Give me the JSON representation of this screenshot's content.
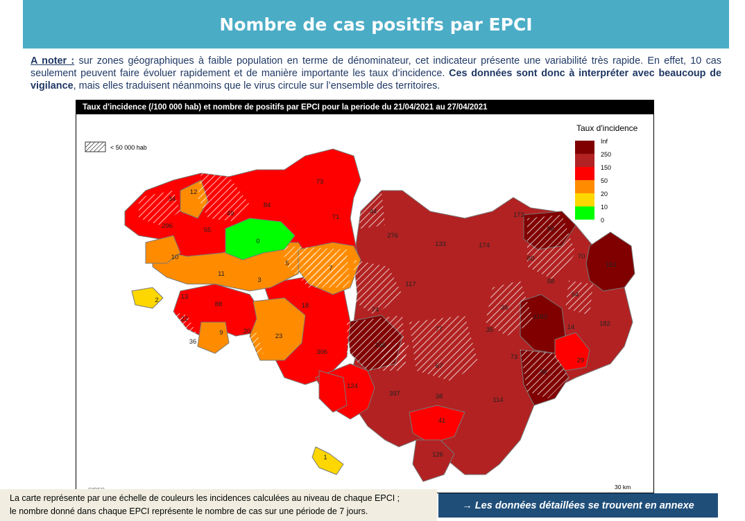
{
  "page": {
    "title": "Nombre de cas positifs par EPCI",
    "note_lead": "A noter :",
    "note_text_1": " sur zones géographiques à faible population en terme de dénominateur, cet indicateur présente une variabilité très rapide. En effet, 10 cas seulement peuvent faire évoluer rapidement et de manière importante les taux d’incidence. ",
    "note_bold": "Ces données sont donc à interpréter avec beaucoup de vigilance",
    "note_text_2": ", mais elles traduisent néanmoins que le virus circule sur l’ensemble des territoires."
  },
  "map": {
    "header": "Taux d'incidence (/100 000 hab) et nombre de positifs par EPCI pour la periode du 21/04/2021 au 27/04/2021",
    "hatch_legend": "< 50 000 hab",
    "legend_title": "Taux d'incidence",
    "legend": [
      {
        "label": "Inf",
        "color": "#800000"
      },
      {
        "label": "250",
        "color": "#b22222"
      },
      {
        "label": "150",
        "color": "#ff0000"
      },
      {
        "label": "50",
        "color": "#ff8c00"
      },
      {
        "label": "20",
        "color": "#ffd700"
      },
      {
        "label": "10",
        "color": "#00ff00"
      },
      {
        "label": "0",
        "color": ""
      }
    ],
    "scale": "30 km",
    "source": "SIRES",
    "epci_counts": [
      "12",
      "34",
      "49",
      "84",
      "73",
      "44",
      "71",
      "296",
      "0",
      "55",
      "5",
      "7",
      "276",
      "133",
      "174",
      "173",
      "92",
      "10",
      "11",
      "3",
      "117",
      "60",
      "70",
      "151",
      "2",
      "13",
      "88",
      "18",
      "74",
      "39",
      "58",
      "54",
      "22",
      "36",
      "9",
      "20",
      "23",
      "156",
      "77",
      "35",
      "73",
      "1163",
      "14",
      "182",
      "306",
      "67",
      "29",
      "124",
      "397",
      "38",
      "114",
      "38",
      "41",
      "126",
      "1"
    ]
  },
  "footer": {
    "caption_line1": "La carte représente par une échelle de couleurs les incidences calculées au niveau de chaque EPCI ;",
    "caption_line2": "le nombre donné dans chaque EPCI représente le nombre de cas sur une période de 7 jours.",
    "annex_button": "→ Les données détaillées se trouvent en annexe"
  }
}
